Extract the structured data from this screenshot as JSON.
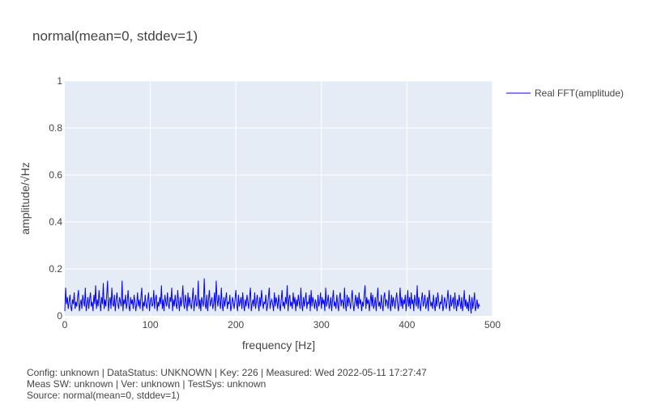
{
  "chart_data": {
    "type": "line",
    "title": "normal(mean=0, stddev=1)",
    "xlabel": "frequency [Hz]",
    "ylabel": "amplitude/√Hz",
    "xlim": [
      0,
      500
    ],
    "ylim": [
      0,
      1
    ],
    "xticks": [
      0,
      100,
      200,
      300,
      400,
      500
    ],
    "yticks": [
      0,
      0.2,
      0.4,
      0.6,
      0.8,
      1
    ],
    "grid": true,
    "legend_position": "top-right",
    "series": [
      {
        "name": "Real FFT(amplitude)",
        "color": "#0000ff",
        "x_start": 0,
        "x_step": 1,
        "values": [
          0.02,
          0.12,
          0.05,
          0.08,
          0.03,
          0.06,
          0.09,
          0.04,
          0.02,
          0.07,
          0.05,
          0.1,
          0.03,
          0.06,
          0.04,
          0.08,
          0.11,
          0.02,
          0.05,
          0.07,
          0.03,
          0.09,
          0.06,
          0.04,
          0.12,
          0.02,
          0.05,
          0.08,
          0.03,
          0.07,
          0.1,
          0.04,
          0.06,
          0.02,
          0.09,
          0.05,
          0.13,
          0.03,
          0.07,
          0.04,
          0.11,
          0.06,
          0.02,
          0.08,
          0.05,
          0.14,
          0.03,
          0.07,
          0.04,
          0.09,
          0.15,
          0.02,
          0.06,
          0.08,
          0.03,
          0.12,
          0.05,
          0.04,
          0.09,
          0.02,
          0.07,
          0.1,
          0.05,
          0.03,
          0.08,
          0.06,
          0.04,
          0.15,
          0.02,
          0.07,
          0.05,
          0.09,
          0.03,
          0.06,
          0.11,
          0.04,
          0.02,
          0.08,
          0.05,
          0.07,
          0.03,
          0.09,
          0.06,
          0.02,
          0.05,
          0.1,
          0.04,
          0.07,
          0.03,
          0.08,
          0.12,
          0.02,
          0.06,
          0.04,
          0.09,
          0.05,
          0.03,
          0.07,
          0.1,
          0.02,
          0.06,
          0.08,
          0.04,
          0.05,
          0.11,
          0.03,
          0.07,
          0.09,
          0.02,
          0.06,
          0.04,
          0.08,
          0.05,
          0.13,
          0.03,
          0.07,
          0.02,
          0.09,
          0.06,
          0.04,
          0.1,
          0.05,
          0.03,
          0.08,
          0.06,
          0.12,
          0.02,
          0.07,
          0.04,
          0.09,
          0.05,
          0.03,
          0.11,
          0.06,
          0.02,
          0.08,
          0.04,
          0.07,
          0.13,
          0.05,
          0.03,
          0.09,
          0.06,
          0.02,
          0.1,
          0.04,
          0.08,
          0.05,
          0.03,
          0.07,
          0.12,
          0.02,
          0.06,
          0.09,
          0.04,
          0.05,
          0.15,
          0.03,
          0.07,
          0.02,
          0.08,
          0.06,
          0.04,
          0.16,
          0.05,
          0.03,
          0.09,
          0.02,
          0.07,
          0.11,
          0.04,
          0.06,
          0.08,
          0.03,
          0.05,
          0.1,
          0.02,
          0.15,
          0.07,
          0.04,
          0.09,
          0.06,
          0.03,
          0.12,
          0.05,
          0.02,
          0.08,
          0.04,
          0.07,
          0.1,
          0.03,
          0.06,
          0.05,
          0.09,
          0.02,
          0.04,
          0.08,
          0.06,
          0.03,
          0.07,
          0.11,
          0.05,
          0.02,
          0.09,
          0.04,
          0.06,
          0.08,
          0.03,
          0.1,
          0.05,
          0.02,
          0.07,
          0.04,
          0.09,
          0.06,
          0.03,
          0.08,
          0.12,
          0.02,
          0.05,
          0.07,
          0.04,
          0.1,
          0.03,
          0.06,
          0.09,
          0.05,
          0.02,
          0.08,
          0.04,
          0.11,
          0.07,
          0.03,
          0.06,
          0.05,
          0.09,
          0.02,
          0.04,
          0.08,
          0.12,
          0.03,
          0.06,
          0.07,
          0.05,
          0.02,
          0.1,
          0.04,
          0.08,
          0.06,
          0.03,
          0.09,
          0.05,
          0.02,
          0.07,
          0.11,
          0.04,
          0.06,
          0.03,
          0.08,
          0.05,
          0.13,
          0.02,
          0.07,
          0.09,
          0.04,
          0.06,
          0.03,
          0.1,
          0.05,
          0.08,
          0.02,
          0.07,
          0.04,
          0.09,
          0.06,
          0.03,
          0.12,
          0.05,
          0.02,
          0.08,
          0.04,
          0.07,
          0.1,
          0.03,
          0.06,
          0.05,
          0.09,
          0.02,
          0.11,
          0.04,
          0.08,
          0.06,
          0.03,
          0.07,
          0.05,
          0.02,
          0.09,
          0.04,
          0.06,
          0.1,
          0.03,
          0.08,
          0.05,
          0.07,
          0.02,
          0.12,
          0.04,
          0.06,
          0.09,
          0.03,
          0.05,
          0.08,
          0.02,
          0.07,
          0.11,
          0.04,
          0.06,
          0.03,
          0.09,
          0.05,
          0.02,
          0.08,
          0.1,
          0.04,
          0.07,
          0.06,
          0.03,
          0.12,
          0.05,
          0.02,
          0.09,
          0.04,
          0.08,
          0.06,
          0.03,
          0.07,
          0.11,
          0.05,
          0.02,
          0.06,
          0.09,
          0.04,
          0.08,
          0.03,
          0.1,
          0.05,
          0.07,
          0.02,
          0.06,
          0.04,
          0.09,
          0.13,
          0.03,
          0.08,
          0.05,
          0.07,
          0.02,
          0.06,
          0.1,
          0.04,
          0.09,
          0.03,
          0.05,
          0.08,
          0.02,
          0.07,
          0.12,
          0.04,
          0.06,
          0.03,
          0.09,
          0.05,
          0.02,
          0.08,
          0.1,
          0.04,
          0.07,
          0.06,
          0.03,
          0.11,
          0.05,
          0.02,
          0.09,
          0.04,
          0.08,
          0.06,
          0.03,
          0.07,
          0.1,
          0.05,
          0.02,
          0.06,
          0.12,
          0.04,
          0.08,
          0.03,
          0.07,
          0.05,
          0.09,
          0.02,
          0.06,
          0.11,
          0.04,
          0.08,
          0.03,
          0.1,
          0.05,
          0.07,
          0.02,
          0.09,
          0.06,
          0.04,
          0.13,
          0.03,
          0.08,
          0.05,
          0.02,
          0.07,
          0.1,
          0.04,
          0.06,
          0.09,
          0.03,
          0.05,
          0.08,
          0.02,
          0.11,
          0.07,
          0.04,
          0.06,
          0.03,
          0.09,
          0.05,
          0.02,
          0.08,
          0.04,
          0.1,
          0.07,
          0.03,
          0.06,
          0.05,
          0.09,
          0.02,
          0.04,
          0.08,
          0.06,
          0.03,
          0.07,
          0.11,
          0.05,
          0.02,
          0.09,
          0.04,
          0.06,
          0.08,
          0.03,
          0.1,
          0.05,
          0.02,
          0.07,
          0.04,
          0.09,
          0.06,
          0.03,
          0.08,
          0.02,
          0.05,
          0.11,
          0.04,
          0.07,
          0.03,
          0.06,
          0.02,
          0.09,
          0.05,
          0.01,
          0.08,
          0.03,
          0.06,
          0.1,
          0.02,
          0.04,
          0.07,
          0.03,
          0.05,
          0.04
        ]
      }
    ]
  },
  "footer": {
    "line1": "Config: unknown | DataStatus: UNKNOWN | Key: 226 | Measured: Wed 2022-05-11 17:27:47",
    "line2": "Meas SW: unknown | Ver: unknown | TestSys: unknown",
    "line3": "Source: normal(mean=0, stddev=1)"
  }
}
